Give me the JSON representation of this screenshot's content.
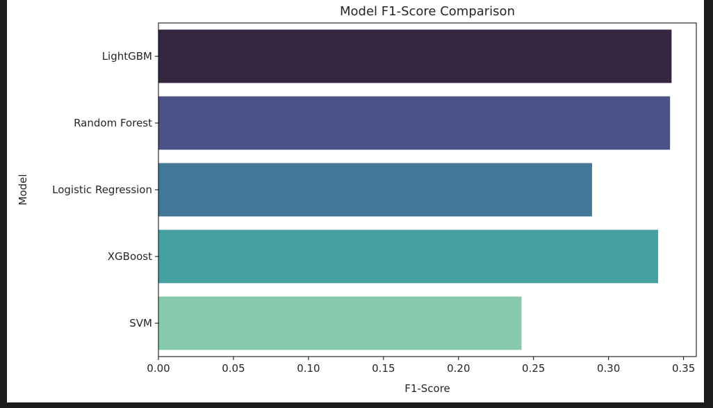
{
  "chart_data": {
    "type": "bar",
    "orientation": "horizontal",
    "title": "Model F1-Score Comparison",
    "xlabel": "F1-Score",
    "ylabel": "Model",
    "categories": [
      "LightGBM",
      "Random Forest",
      "Logistic Regression",
      "XGBoost",
      "SVM"
    ],
    "values": [
      0.342,
      0.341,
      0.289,
      0.333,
      0.242
    ],
    "colors": [
      "#35263f",
      "#4a5186",
      "#437898",
      "#489f9f",
      "#86c9ac"
    ],
    "xlim": [
      0,
      0.3585
    ],
    "xticks": [
      0.0,
      0.05,
      0.1,
      0.15,
      0.2,
      0.25,
      0.3,
      0.35
    ],
    "xtick_labels": [
      "0.00",
      "0.05",
      "0.10",
      "0.15",
      "0.20",
      "0.25",
      "0.30",
      "0.35"
    ],
    "grid": false,
    "legend": false
  }
}
